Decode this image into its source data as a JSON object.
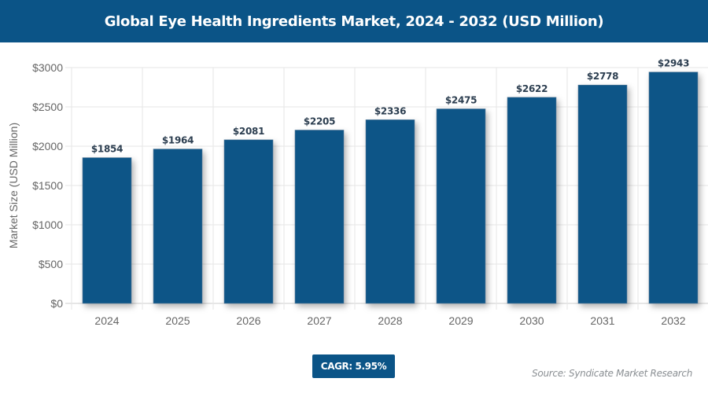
{
  "title": "Global Eye Health Ingredients Market, 2024 - 2032 (USD Million)",
  "cagr_label": "CAGR: 5.95%",
  "source": "Source: Syndicate Market Research",
  "colors": {
    "bar": "#0b5487",
    "title_bg": "#0b5487",
    "label": "#2c3e50"
  },
  "chart_data": {
    "type": "bar",
    "title": "Global Eye Health Ingredients Market, 2024 - 2032 (USD Million)",
    "xlabel": "",
    "ylabel": "Market Size (USD Million)",
    "categories": [
      "2024",
      "2025",
      "2026",
      "2027",
      "2028",
      "2029",
      "2030",
      "2031",
      "2032"
    ],
    "values": [
      1854,
      1964,
      2081,
      2205,
      2336,
      2475,
      2622,
      2778,
      2943
    ],
    "data_labels": [
      "$1854",
      "$1964",
      "$2081",
      "$2205",
      "$2336",
      "$2475",
      "$2622",
      "$2778",
      "$2943"
    ],
    "ylim": [
      0,
      3000
    ],
    "yticks": [
      0,
      500,
      1000,
      1500,
      2000,
      2500,
      3000
    ],
    "ytick_labels": [
      "$0",
      "$500",
      "$1000",
      "$1500",
      "$2000",
      "$2500",
      "$3000"
    ],
    "grid": true,
    "legend": "none"
  }
}
